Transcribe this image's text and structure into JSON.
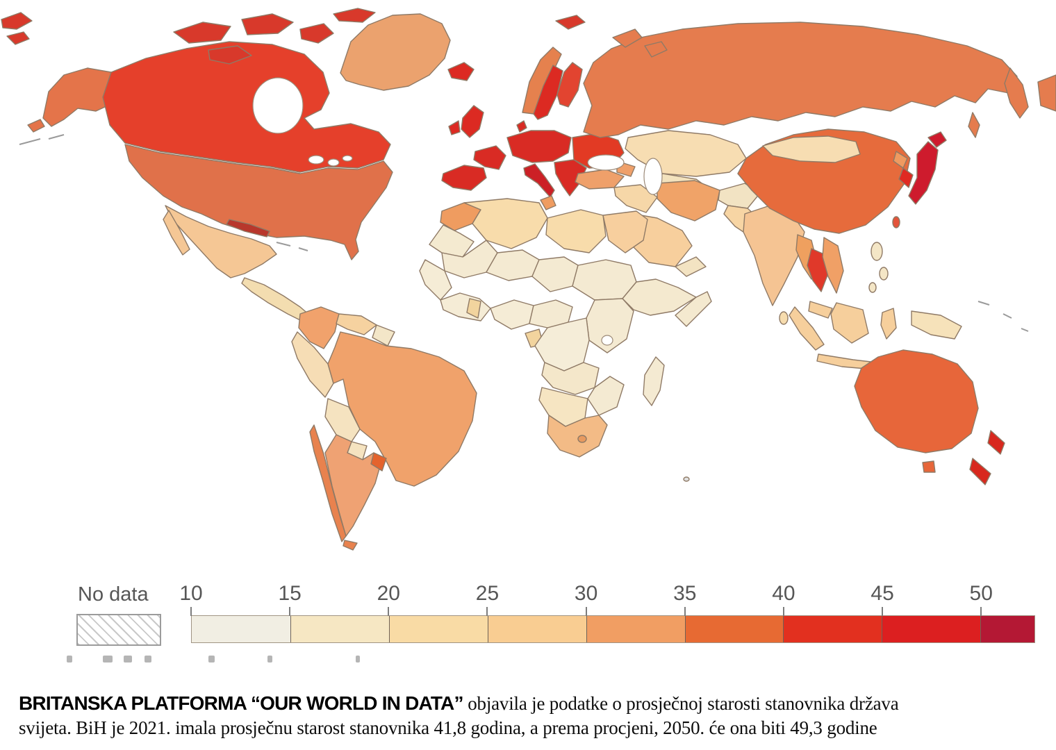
{
  "legend": {
    "no_data_label": "No data",
    "tick_labels": [
      "10",
      "15",
      "20",
      "25",
      "30",
      "35",
      "40",
      "45",
      "50"
    ],
    "bin_colors": [
      "#f1eee3",
      "#f6e7c3",
      "#f9dba5",
      "#f9cd92",
      "#f19e63",
      "#e76a33",
      "#e2301f",
      "#dc1f20",
      "#b41834"
    ]
  },
  "caption": {
    "lead": "BRITANSKA PLATFORMA “OUR WORLD IN DATA”",
    "rest": " objavila je podatke o prosječnoj starosti stanovnika država svijeta. BiH je 2021. imala prosječnu starost stanovnika 41,8 godina, a prema procjeni, 2050. će ona biti 49,3 godine"
  },
  "map": {
    "ocean_color": "#ffffff",
    "border_color": "#8f7a66",
    "region_colors": {
      "canada": "#e5402b",
      "alaska": "#e4744a",
      "greenland": "#eba26e",
      "usa": "#e0714a",
      "mexico": "#f5c795",
      "central_america": "#f3ddb0",
      "cuba": "#b8372c",
      "colombia": "#f1a26c",
      "venezuela": "#f6d2a0",
      "guyanas": "#f3e6c8",
      "peru": "#f6ddb5",
      "brazil": "#f0a26b",
      "bolivia": "#f5e3c0",
      "paraguay": "#f5e3c0",
      "argentina": "#efa273",
      "chile": "#e8824e",
      "uruguay": "#e4632d",
      "iberia": "#d92b24",
      "france": "#d92b24",
      "uk": "#dc2a22",
      "ireland": "#dc2a22",
      "central_europe": "#d92b24",
      "italy": "#cc2026",
      "balkans": "#d92b24",
      "eastern_europe": "#e23a24",
      "norway": "#e5814e",
      "sweden": "#dc2a22",
      "finland": "#e24430",
      "denmark": "#d92b24",
      "iceland": "#dc2a22",
      "russia": "#e57c4e",
      "arctic_islands": "#d8392b",
      "kazakhstan": "#f7ddb2",
      "central_asia": "#f3e2bd",
      "caucasus": "#efa06a",
      "turkey": "#efa06a",
      "iraq_syria": "#f6d7a8",
      "iran": "#f0a368",
      "afghanistan": "#f2e3c3",
      "pakistan": "#f7d5a4",
      "saudi_arabia": "#f7cf9d",
      "yemen_oman": "#f3e3c2",
      "india": "#f5c493",
      "sri_lanka": "#f6dcae",
      "myanmar": "#efa05f",
      "thailand": "#e0392a",
      "vietnam": "#f0a066",
      "malaysia": "#f6cf9c",
      "philippines": "#f4e6c6",
      "indonesia": "#f6cf9c",
      "new_guinea": "#f6e2ba",
      "china": "#e66b3c",
      "mongolia": "#f7ddb2",
      "north_korea": "#ef9a60",
      "south_korea": "#e02a22",
      "japan": "#ce1b2d",
      "taiwan": "#e4533a",
      "australia": "#e7663a",
      "new_zealand": "#d8281e",
      "morocco": "#ef9c60",
      "west_sahara_mauritania": "#f4ead0",
      "algeria": "#f8dcab",
      "tunisia": "#ef9c60",
      "libya": "#f8dcab",
      "egypt": "#f7cf9e",
      "sahel": "#f4ead2",
      "west_africa": "#f5ecd6",
      "ghana": "#f2d49e",
      "central_africa": "#f4ead2",
      "gabon": "#f2d49e",
      "horn_of_africa": "#f4e9cf",
      "drc": "#f5edd8",
      "angola_zambia": "#f4e7ca",
      "namibia_botswana": "#f6e5c2",
      "south_africa": "#f3bb86",
      "lesotho": "#e89a5f",
      "madagascar": "#f4ead2"
    }
  },
  "chart_data": {
    "type": "choropleth",
    "legend_scale": {
      "ticks": [
        10,
        15,
        20,
        25,
        30,
        35,
        40,
        45,
        50
      ],
      "no_data_bin": true
    },
    "caption_values": {
      "bih_2021_average_age": "41,8",
      "bih_2050_projected_age": "49,3"
    }
  }
}
